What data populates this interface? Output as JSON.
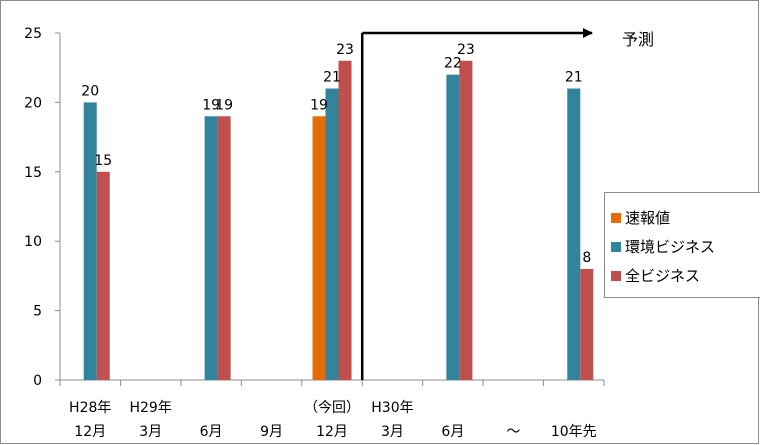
{
  "chart_data": {
    "type": "bar",
    "title": "",
    "xlabel": "",
    "ylabel": "",
    "ylim": [
      0,
      25
    ],
    "yticks": [
      0,
      5,
      10,
      15,
      20,
      25
    ],
    "grid": false,
    "legend_position": "right",
    "categories": [
      [
        "H28年",
        "12月"
      ],
      [
        "H29年",
        "3月"
      ],
      [
        "",
        "6月"
      ],
      [
        "",
        "9月"
      ],
      [
        "（今回）",
        "12月"
      ],
      [
        "H30年",
        "3月"
      ],
      [
        "",
        "6月"
      ],
      [
        "",
        "〜"
      ],
      [
        "",
        "10年先"
      ]
    ],
    "series": [
      {
        "name": "速報値",
        "color": "#E36C09",
        "values": [
          null,
          null,
          null,
          null,
          19,
          null,
          null,
          null,
          null
        ]
      },
      {
        "name": "環境ビジネス",
        "color": "#31849B",
        "values": [
          20,
          null,
          19,
          null,
          21,
          null,
          22,
          null,
          21
        ]
      },
      {
        "name": "全ビジネス",
        "color": "#C0504D",
        "values": [
          15,
          null,
          19,
          null,
          23,
          null,
          23,
          null,
          8
        ]
      }
    ],
    "annotation": {
      "text": "予測",
      "from_category_index": 5
    }
  }
}
